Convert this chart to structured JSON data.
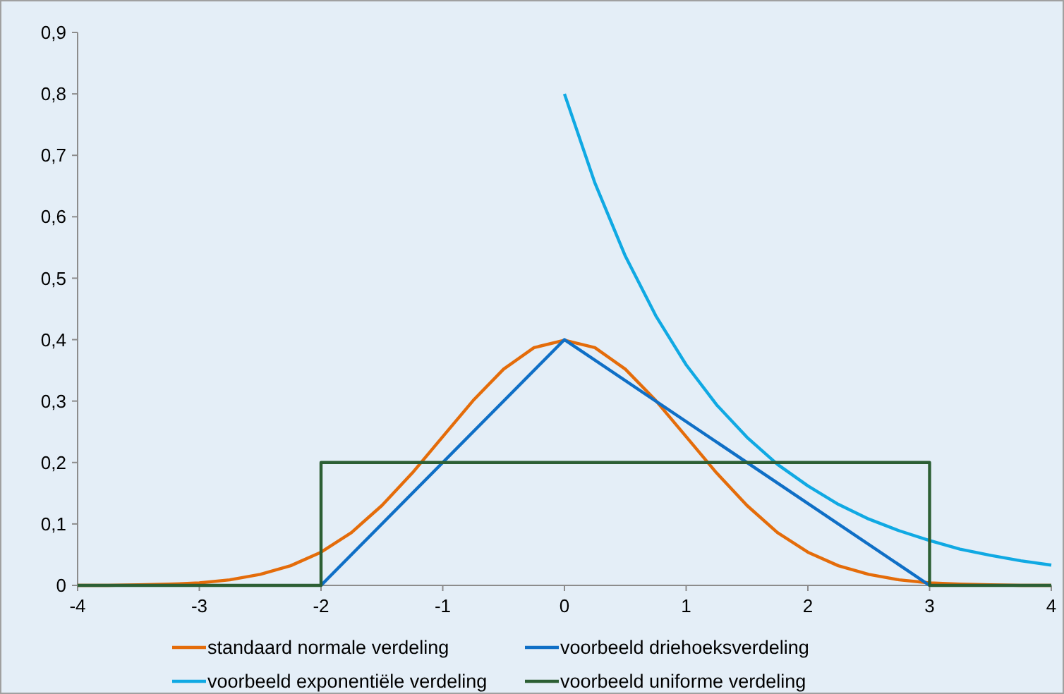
{
  "chart_data": {
    "type": "line",
    "xlim": [
      -4,
      4
    ],
    "xticks": [
      -4,
      -3,
      -2,
      -1,
      0,
      1,
      2,
      3,
      4
    ],
    "ylim": [
      0,
      0.9
    ],
    "yticks": [
      0,
      {
        "value": 0.1,
        "label": "0,1"
      },
      {
        "value": 0.2,
        "label": "0,2"
      },
      {
        "value": 0.3,
        "label": "0,3"
      },
      {
        "value": 0.4,
        "label": "0,4"
      },
      {
        "value": 0.5,
        "label": "0,5"
      },
      {
        "value": 0.6,
        "label": "0,6"
      },
      {
        "value": 0.7,
        "label": "0,7"
      },
      {
        "value": 0.8,
        "label": "0,8"
      },
      {
        "value": 0.9,
        "label": "0,9"
      }
    ],
    "grid": false,
    "legend": "bottom",
    "marker": "none",
    "line_style": "solid",
    "series": [
      {
        "name": "standaard normale verdeling",
        "color": "#e46c0a",
        "x": [
          -4,
          -3.75,
          -3.5,
          -3.25,
          -3,
          -2.75,
          -2.5,
          -2.25,
          -2,
          -1.75,
          -1.5,
          -1.25,
          -1,
          -0.75,
          -0.5,
          -0.25,
          0,
          0.25,
          0.5,
          0.75,
          1,
          1.25,
          1.5,
          1.75,
          2,
          2.25,
          2.5,
          2.75,
          3,
          3.25,
          3.5,
          3.75,
          4
        ],
        "values": [
          0,
          0,
          0.001,
          0.002,
          0.004,
          0.009,
          0.018,
          0.032,
          0.054,
          0.086,
          0.13,
          0.183,
          0.242,
          0.301,
          0.352,
          0.387,
          0.399,
          0.387,
          0.352,
          0.301,
          0.242,
          0.183,
          0.13,
          0.086,
          0.054,
          0.032,
          0.018,
          0.009,
          0.004,
          0.002,
          0.001,
          0,
          0
        ]
      },
      {
        "name": "voorbeeld driehoeksverdeling",
        "color": "#0f6fc6",
        "x": [
          -2,
          0,
          3
        ],
        "values": [
          0,
          0.4,
          0
        ]
      },
      {
        "name": "voorbeeld exponentiële verdeling",
        "color": "#10a9e3",
        "x": [
          0,
          0.25,
          0.5,
          0.75,
          1,
          1.25,
          1.5,
          1.75,
          2,
          2.25,
          2.5,
          2.75,
          3,
          3.25,
          3.5,
          3.75,
          4
        ],
        "values": [
          0.8,
          0.655,
          0.536,
          0.439,
          0.359,
          0.294,
          0.241,
          0.197,
          0.162,
          0.132,
          0.108,
          0.089,
          0.073,
          0.059,
          0.049,
          0.04,
          0.033
        ]
      },
      {
        "name": "voorbeeld uniforme verdeling",
        "color": "#2c5f34",
        "x": [
          -4,
          -2,
          -2,
          3,
          3,
          4
        ],
        "values": [
          0,
          0,
          0.2,
          0.2,
          0,
          0
        ]
      }
    ]
  }
}
